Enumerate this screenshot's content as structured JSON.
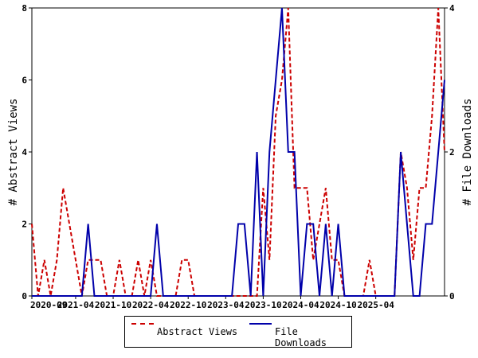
{
  "chart_data": {
    "type": "line",
    "xlabel": "",
    "x_tick_labels": [
      "2020-09",
      "2021-04",
      "2021-10",
      "2022-04",
      "2022-10",
      "2023-04",
      "2023-10",
      "2024-04",
      "2024-10",
      "2025-04"
    ],
    "y_left": {
      "label": "# Abstract Views",
      "range": [
        0,
        8
      ],
      "ticks": [
        "0",
        "2",
        "4",
        "6",
        "8"
      ]
    },
    "y_right": {
      "label": "# File Downloads",
      "range": [
        0,
        4
      ],
      "ticks": [
        "0",
        "2",
        "4"
      ]
    },
    "grid": false,
    "legend_position": "bottom-center",
    "series": [
      {
        "name": "Abstract Views",
        "axis": "left",
        "color": "#cc0000",
        "style": "dashed",
        "values": [
          2,
          0,
          1,
          0,
          1,
          3,
          2,
          1,
          0,
          1,
          1,
          1,
          0,
          0,
          1,
          0,
          0,
          1,
          0,
          1,
          0,
          0,
          0,
          0,
          1,
          1,
          0,
          0,
          0,
          0,
          0,
          0,
          0,
          0,
          0,
          0,
          0,
          3,
          1,
          5,
          6,
          8,
          3,
          3,
          3,
          1,
          2,
          3,
          1,
          1,
          0,
          0,
          0,
          0,
          1,
          0,
          0,
          0,
          0,
          4,
          3,
          1,
          3,
          3,
          5,
          8,
          4
        ]
      },
      {
        "name": "File Downloads",
        "axis": "right",
        "color": "#0000aa",
        "style": "solid",
        "values": [
          0,
          0,
          0,
          0,
          0,
          0,
          0,
          0,
          0,
          1,
          0,
          0,
          0,
          0,
          0,
          0,
          0,
          0,
          0,
          0,
          1,
          0,
          0,
          0,
          0,
          0,
          0,
          0,
          0,
          0,
          0,
          0,
          0,
          1,
          1,
          0,
          2,
          0,
          2,
          3,
          4,
          2,
          2,
          0,
          1,
          1,
          0,
          1,
          0,
          1,
          0,
          0,
          0,
          0,
          0,
          0,
          0,
          0,
          0,
          2,
          1,
          0,
          0,
          1,
          1,
          2,
          3
        ]
      }
    ]
  }
}
